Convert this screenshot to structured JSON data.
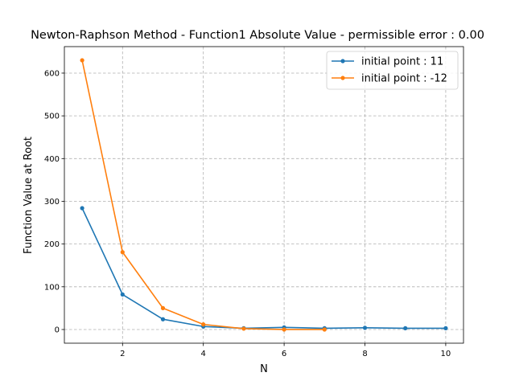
{
  "chart_data": {
    "type": "line",
    "title": "Newton-Raphson Method - Function1 Absolute Value - permissible error : 0.00",
    "xlabel": "N",
    "ylabel": "Function Value at Root",
    "xlim": [
      0.56,
      10.44
    ],
    "ylim": [
      -32,
      662
    ],
    "xticks": [
      2,
      4,
      6,
      8,
      10
    ],
    "yticks": [
      0,
      100,
      200,
      300,
      400,
      500,
      600
    ],
    "grid": true,
    "legend_position": "upper-right",
    "series": [
      {
        "name": "initial point : 11",
        "color": "#1f77b4",
        "x": [
          1,
          2,
          3,
          4,
          5,
          6,
          7,
          8,
          9,
          10
        ],
        "y": [
          284,
          82,
          24,
          7,
          3,
          5,
          3,
          4,
          3,
          3
        ]
      },
      {
        "name": "initial point : -12",
        "color": "#ff7f0e",
        "x": [
          1,
          2,
          3,
          4,
          5,
          6,
          7
        ],
        "y": [
          630,
          181,
          50,
          12,
          2,
          0,
          0
        ]
      }
    ]
  }
}
